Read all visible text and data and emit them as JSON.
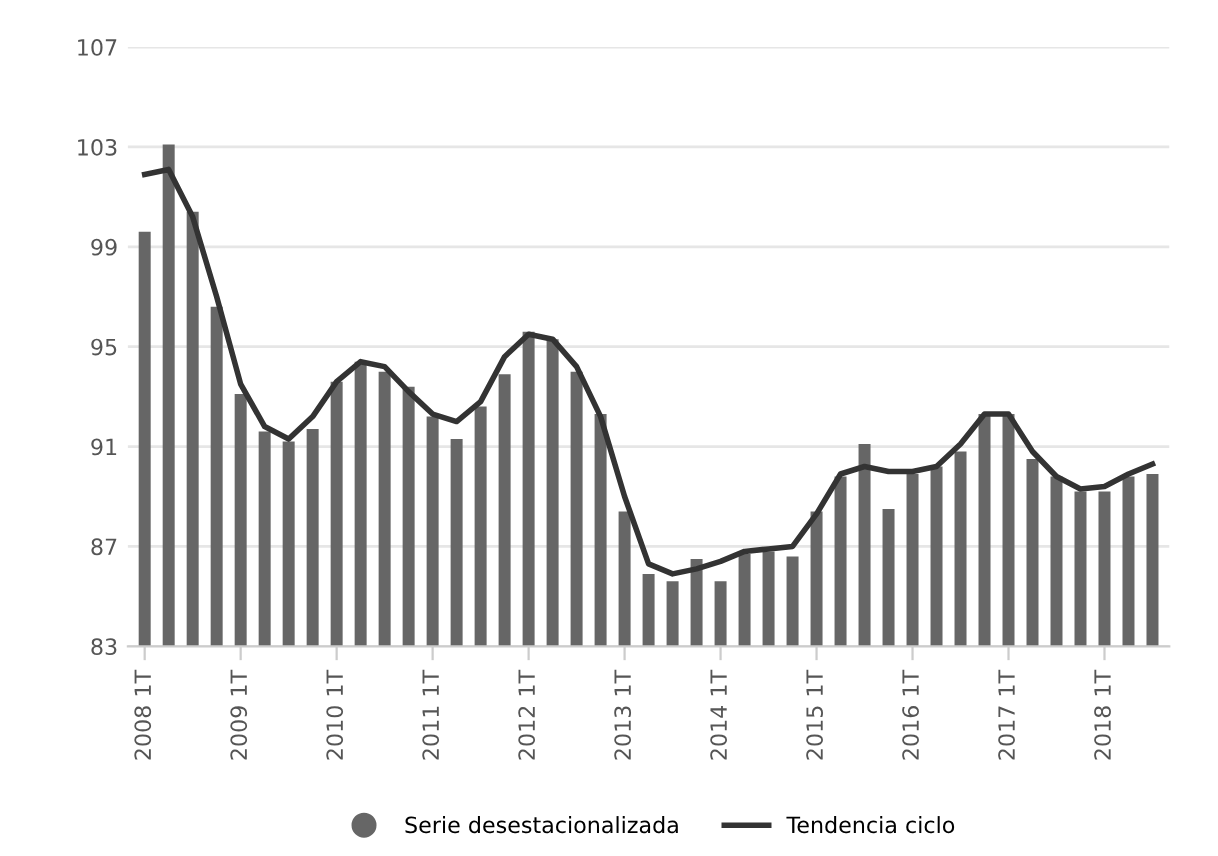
{
  "chart_data": {
    "type": "bar",
    "categories": [
      "2008 1T",
      null,
      null,
      null,
      "2009 1T",
      null,
      null,
      null,
      "2010 1T",
      null,
      null,
      null,
      "2011 1T",
      null,
      null,
      null,
      "2012 1T",
      null,
      null,
      null,
      "2013 1T",
      null,
      null,
      null,
      "2014 1T",
      null,
      null,
      null,
      "2015 1T",
      null,
      null,
      null,
      "2016 1T",
      null,
      null,
      null,
      "2017 1T",
      null,
      null,
      null,
      "2018 1T",
      null,
      null
    ],
    "series": [
      {
        "name": "Serie desestacionalizada",
        "color": "#666666",
        "values": [
          99.6,
          103.1,
          100.4,
          96.6,
          93.1,
          91.6,
          91.2,
          91.7,
          93.6,
          94.4,
          94.0,
          93.4,
          92.2,
          91.3,
          92.6,
          93.9,
          95.6,
          95.3,
          94.0,
          92.3,
          88.4,
          85.9,
          85.6,
          86.5,
          85.6,
          86.7,
          86.8,
          86.6,
          88.4,
          89.8,
          91.1,
          88.5,
          89.9,
          90.2,
          90.8,
          92.3,
          92.3,
          90.5,
          89.8,
          89.2,
          89.2,
          89.8,
          89.9
        ]
      },
      {
        "name": "Tendencia ciclo",
        "type": "line",
        "color": "#333333",
        "values": [
          101.9,
          102.1,
          100.2,
          97.0,
          93.5,
          91.8,
          91.3,
          92.2,
          93.6,
          94.4,
          94.2,
          93.2,
          92.3,
          92.0,
          92.8,
          94.6,
          95.5,
          95.3,
          94.2,
          92.2,
          89.0,
          86.3,
          85.9,
          86.1,
          86.4,
          86.8,
          86.9,
          87.0,
          88.3,
          89.9,
          90.2,
          90.0,
          90.0,
          90.2,
          91.1,
          92.3,
          92.3,
          90.8,
          89.8,
          89.3,
          89.4,
          89.9,
          90.3
        ]
      }
    ],
    "ylim": [
      83,
      107
    ],
    "yticks": [
      83,
      87,
      91,
      95,
      99,
      103,
      107
    ],
    "grid": "y",
    "legend": "bottom",
    "marker": "none",
    "line_style": "solid"
  }
}
